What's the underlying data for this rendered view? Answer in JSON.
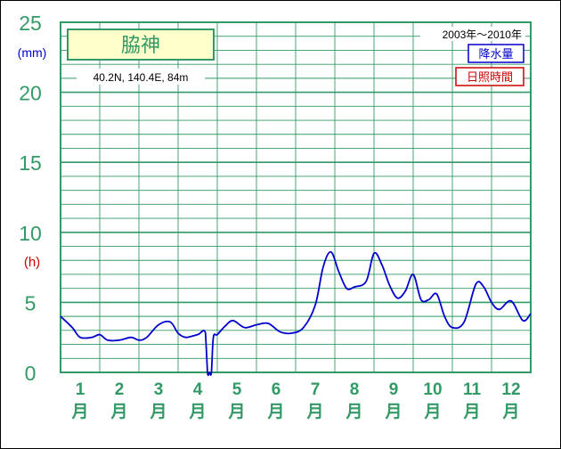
{
  "chart_data": {
    "type": "line",
    "station": "脇神",
    "coords": "40.2N,  140.4E,  84m",
    "period": "2003年〜2010年",
    "unit_precip": "(mm)",
    "unit_sun": "(h)",
    "yticks": [
      "25",
      "20",
      "15",
      "10",
      "5",
      "0"
    ],
    "ylim": [
      0,
      25
    ],
    "months": [
      {
        "num": "1",
        "label": "月"
      },
      {
        "num": "2",
        "label": "月"
      },
      {
        "num": "3",
        "label": "月"
      },
      {
        "num": "4",
        "label": "月"
      },
      {
        "num": "5",
        "label": "月"
      },
      {
        "num": "6",
        "label": "月"
      },
      {
        "num": "7",
        "label": "月"
      },
      {
        "num": "8",
        "label": "月"
      },
      {
        "num": "9",
        "label": "月"
      },
      {
        "num": "10",
        "label": "月"
      },
      {
        "num": "11",
        "label": "月"
      },
      {
        "num": "12",
        "label": "月"
      }
    ],
    "legend": [
      {
        "name": "降水量",
        "color": "#0000cc"
      },
      {
        "name": "日照時間",
        "color": "#cc0000"
      }
    ],
    "series": [
      {
        "name": "降水量",
        "color": "#0000cc",
        "x": [
          0.0,
          0.3,
          0.5,
          0.8,
          1.0,
          1.2,
          1.5,
          1.8,
          2.0,
          2.2,
          2.5,
          2.8,
          3.0,
          3.2,
          3.5,
          3.7,
          3.75,
          3.8,
          3.85,
          3.9,
          4.0,
          4.2,
          4.4,
          4.7,
          5.0,
          5.3,
          5.6,
          5.9,
          6.2,
          6.5,
          6.7,
          6.9,
          7.1,
          7.3,
          7.5,
          7.8,
          8.0,
          8.2,
          8.4,
          8.6,
          8.8,
          9.0,
          9.2,
          9.4,
          9.6,
          9.8,
          10.0,
          10.3,
          10.6,
          10.8,
          11.0,
          11.2,
          11.5,
          11.8,
          12.0
        ],
        "y": [
          4.0,
          3.2,
          2.5,
          2.5,
          2.7,
          2.3,
          2.3,
          2.5,
          2.3,
          2.5,
          3.4,
          3.6,
          2.8,
          2.5,
          2.7,
          2.8,
          0.0,
          0.0,
          0.0,
          2.5,
          2.7,
          3.3,
          3.7,
          3.2,
          3.4,
          3.5,
          2.9,
          2.8,
          3.2,
          4.8,
          7.5,
          8.6,
          7.2,
          6.0,
          6.1,
          6.5,
          8.5,
          7.7,
          6.2,
          5.3,
          5.8,
          7.0,
          5.2,
          5.2,
          5.6,
          4.0,
          3.2,
          3.6,
          6.3,
          6.1,
          5.0,
          4.5,
          5.1,
          3.7,
          4.2
        ]
      }
    ]
  }
}
